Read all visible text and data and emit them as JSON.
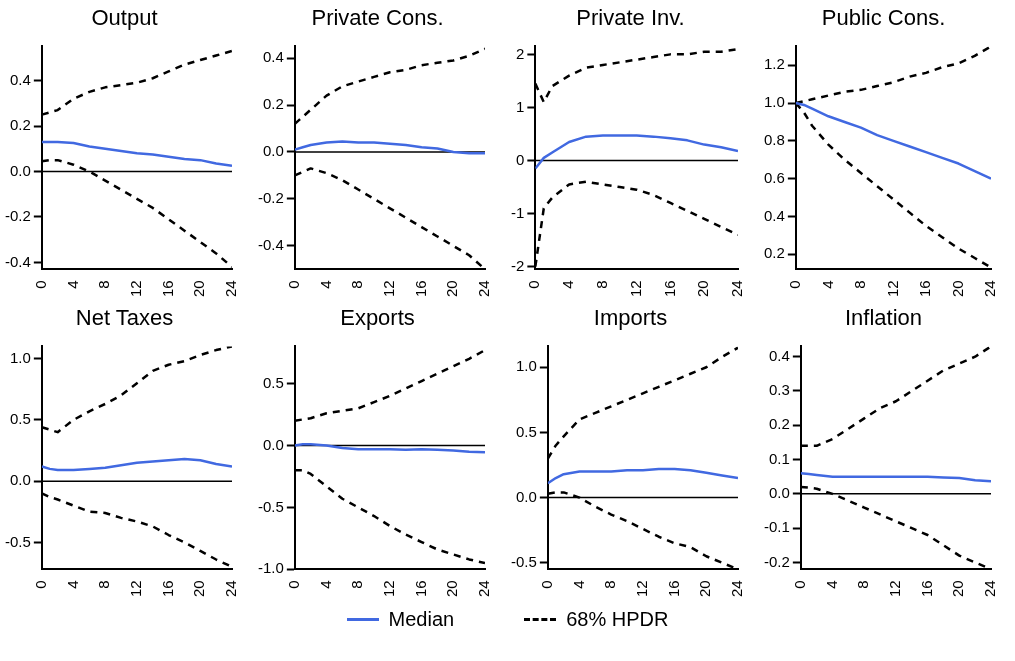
{
  "chart_data": [
    {
      "type": "line",
      "title": "Output",
      "x": [
        0,
        1,
        2,
        4,
        6,
        8,
        10,
        12,
        14,
        16,
        18,
        20,
        22,
        24
      ],
      "xlim": [
        0,
        24
      ],
      "xticks": [
        0,
        4,
        8,
        12,
        16,
        20,
        24
      ],
      "ylim": [
        -0.43,
        0.55
      ],
      "yticks": [
        0.4,
        0.2,
        {
          "value": 0,
          "label": "0.0"
        },
        -0.2,
        -0.4
      ],
      "grid": false,
      "marker": "none",
      "ref_lines": [
        {
          "axis": "y",
          "value": 0,
          "color": "#000000"
        }
      ],
      "series": [
        {
          "color": "#4169e1",
          "line_style": "solid",
          "values": [
            0.13,
            0.13,
            0.13,
            0.125,
            0.11,
            0.1,
            0.09,
            0.08,
            0.075,
            0.065,
            0.055,
            0.05,
            0.035,
            0.025
          ]
        },
        {
          "color": "#000000",
          "line_style": "dashed",
          "values": [
            0.25,
            0.26,
            0.27,
            0.32,
            0.35,
            0.37,
            0.38,
            0.39,
            0.41,
            0.44,
            0.47,
            0.49,
            0.51,
            0.53
          ]
        },
        {
          "color": "#000000",
          "line_style": "dashed",
          "values": [
            0.045,
            0.05,
            0.05,
            0.03,
            0.0,
            -0.04,
            -0.08,
            -0.12,
            -0.16,
            -0.21,
            -0.26,
            -0.31,
            -0.36,
            -0.42
          ]
        }
      ]
    },
    {
      "type": "line",
      "title": "Private Cons.",
      "x": [
        0,
        1,
        2,
        4,
        6,
        8,
        10,
        12,
        14,
        16,
        18,
        20,
        22,
        24
      ],
      "xlim": [
        0,
        24
      ],
      "xticks": [
        0,
        4,
        8,
        12,
        16,
        20,
        24
      ],
      "ylim": [
        -0.5,
        0.45
      ],
      "yticks": [
        0.4,
        0.2,
        {
          "value": 0,
          "label": "0.0"
        },
        -0.2,
        -0.4
      ],
      "grid": false,
      "marker": "none",
      "ref_lines": [
        {
          "axis": "y",
          "value": 0,
          "color": "#000000"
        }
      ],
      "series": [
        {
          "color": "#4169e1",
          "line_style": "solid",
          "values": [
            0.01,
            0.02,
            0.03,
            0.04,
            0.045,
            0.04,
            0.04,
            0.035,
            0.03,
            0.02,
            0.015,
            0.0,
            -0.005,
            -0.005
          ]
        },
        {
          "color": "#000000",
          "line_style": "dashed",
          "values": [
            0.12,
            0.15,
            0.18,
            0.24,
            0.28,
            0.3,
            0.32,
            0.34,
            0.35,
            0.37,
            0.38,
            0.39,
            0.41,
            0.44
          ]
        },
        {
          "color": "#000000",
          "line_style": "dashed",
          "values": [
            -0.1,
            -0.085,
            -0.07,
            -0.09,
            -0.12,
            -0.16,
            -0.2,
            -0.24,
            -0.28,
            -0.32,
            -0.36,
            -0.4,
            -0.44,
            -0.5
          ]
        }
      ]
    },
    {
      "type": "line",
      "title": "Private Inv.",
      "x": [
        0,
        1,
        2,
        4,
        6,
        8,
        10,
        12,
        14,
        16,
        18,
        20,
        22,
        24
      ],
      "xlim": [
        0,
        24
      ],
      "xticks": [
        0,
        4,
        8,
        12,
        16,
        20,
        24
      ],
      "ylim": [
        -2.05,
        2.15
      ],
      "yticks": [
        2,
        1,
        0,
        -1,
        -2
      ],
      "grid": false,
      "marker": "none",
      "ref_lines": [
        {
          "axis": "y",
          "value": 0,
          "color": "#000000"
        }
      ],
      "series": [
        {
          "color": "#4169e1",
          "line_style": "solid",
          "values": [
            -0.15,
            0.05,
            0.15,
            0.35,
            0.45,
            0.47,
            0.47,
            0.47,
            0.45,
            0.42,
            0.38,
            0.3,
            0.25,
            0.18
          ]
        },
        {
          "color": "#000000",
          "line_style": "dashed",
          "values": [
            1.45,
            1.1,
            1.4,
            1.6,
            1.75,
            1.8,
            1.85,
            1.9,
            1.95,
            2.0,
            2.0,
            2.05,
            2.05,
            2.1
          ]
        },
        {
          "color": "#000000",
          "line_style": "dashed",
          "values": [
            -2.0,
            -0.9,
            -0.7,
            -0.45,
            -0.4,
            -0.45,
            -0.5,
            -0.55,
            -0.65,
            -0.8,
            -0.95,
            -1.1,
            -1.25,
            -1.4
          ]
        }
      ]
    },
    {
      "type": "line",
      "title": "Public Cons.",
      "x": [
        0,
        1,
        2,
        4,
        6,
        8,
        10,
        12,
        14,
        16,
        18,
        20,
        22,
        24
      ],
      "xlim": [
        0,
        24
      ],
      "xticks": [
        0,
        4,
        8,
        12,
        16,
        20,
        24
      ],
      "ylim": [
        0.12,
        1.3
      ],
      "yticks": [
        1.2,
        {
          "value": 1,
          "label": "1.0"
        },
        0.8,
        0.6,
        0.4,
        0.2
      ],
      "grid": false,
      "marker": "none",
      "series": [
        {
          "color": "#4169e1",
          "line_style": "solid",
          "values": [
            1.0,
            0.99,
            0.97,
            0.93,
            0.9,
            0.87,
            0.83,
            0.8,
            0.77,
            0.74,
            0.71,
            0.68,
            0.64,
            0.6
          ]
        },
        {
          "color": "#000000",
          "line_style": "dashed",
          "values": [
            1.0,
            1.01,
            1.02,
            1.04,
            1.06,
            1.07,
            1.09,
            1.11,
            1.14,
            1.16,
            1.19,
            1.21,
            1.25,
            1.3
          ]
        },
        {
          "color": "#000000",
          "line_style": "dashed",
          "values": [
            1.0,
            0.95,
            0.88,
            0.78,
            0.7,
            0.63,
            0.56,
            0.49,
            0.42,
            0.35,
            0.29,
            0.23,
            0.18,
            0.13
          ]
        }
      ]
    },
    {
      "type": "line",
      "title": "Net Taxes",
      "x": [
        0,
        1,
        2,
        4,
        6,
        8,
        10,
        12,
        14,
        16,
        18,
        20,
        22,
        24
      ],
      "xlim": [
        0,
        24
      ],
      "xticks": [
        0,
        4,
        8,
        12,
        16,
        20,
        24
      ],
      "ylim": [
        -0.72,
        1.1
      ],
      "yticks": [
        {
          "value": 1,
          "label": "1.0"
        },
        0.5,
        {
          "value": 0,
          "label": "0.0"
        },
        -0.5
      ],
      "grid": false,
      "marker": "none",
      "ref_lines": [
        {
          "axis": "y",
          "value": 0,
          "color": "#000000"
        }
      ],
      "series": [
        {
          "color": "#4169e1",
          "line_style": "solid",
          "values": [
            0.12,
            0.1,
            0.09,
            0.09,
            0.1,
            0.11,
            0.13,
            0.15,
            0.16,
            0.17,
            0.18,
            0.17,
            0.14,
            0.12
          ]
        },
        {
          "color": "#000000",
          "line_style": "dashed",
          "values": [
            0.44,
            0.42,
            0.4,
            0.5,
            0.57,
            0.63,
            0.7,
            0.8,
            0.9,
            0.95,
            0.98,
            1.03,
            1.07,
            1.1
          ]
        },
        {
          "color": "#000000",
          "line_style": "dashed",
          "values": [
            -0.1,
            -0.13,
            -0.15,
            -0.2,
            -0.25,
            -0.26,
            -0.3,
            -0.33,
            -0.37,
            -0.44,
            -0.5,
            -0.57,
            -0.64,
            -0.7
          ]
        }
      ]
    },
    {
      "type": "line",
      "title": "Exports",
      "x": [
        0,
        1,
        2,
        4,
        6,
        8,
        10,
        12,
        14,
        16,
        18,
        20,
        22,
        24
      ],
      "xlim": [
        0,
        24
      ],
      "xticks": [
        0,
        4,
        8,
        12,
        16,
        20,
        24
      ],
      "ylim": [
        -1.0,
        0.8
      ],
      "yticks": [
        0.5,
        {
          "value": 0,
          "label": "0.0"
        },
        -0.5,
        {
          "value": -1,
          "label": "-1.0"
        }
      ],
      "grid": false,
      "marker": "none",
      "ref_lines": [
        {
          "axis": "y",
          "value": 0,
          "color": "#000000"
        }
      ],
      "series": [
        {
          "color": "#4169e1",
          "line_style": "solid",
          "values": [
            0.0,
            0.01,
            0.01,
            0.0,
            -0.02,
            -0.03,
            -0.03,
            -0.03,
            -0.035,
            -0.03,
            -0.035,
            -0.04,
            -0.05,
            -0.055
          ]
        },
        {
          "color": "#000000",
          "line_style": "dashed",
          "values": [
            0.2,
            0.21,
            0.22,
            0.26,
            0.28,
            0.3,
            0.35,
            0.4,
            0.46,
            0.52,
            0.58,
            0.64,
            0.7,
            0.77
          ]
        },
        {
          "color": "#000000",
          "line_style": "dashed",
          "values": [
            -0.2,
            -0.2,
            -0.23,
            -0.33,
            -0.43,
            -0.5,
            -0.57,
            -0.65,
            -0.72,
            -0.78,
            -0.84,
            -0.88,
            -0.92,
            -0.95
          ]
        }
      ]
    },
    {
      "type": "line",
      "title": "Imports",
      "x": [
        0,
        1,
        2,
        4,
        6,
        8,
        10,
        12,
        14,
        16,
        18,
        20,
        22,
        24
      ],
      "xlim": [
        0,
        24
      ],
      "xticks": [
        0,
        4,
        8,
        12,
        16,
        20,
        24
      ],
      "ylim": [
        -0.55,
        1.16
      ],
      "yticks": [
        {
          "value": 1,
          "label": "1.0"
        },
        0.5,
        {
          "value": 0,
          "label": "0.0"
        },
        -0.5
      ],
      "grid": false,
      "marker": "none",
      "ref_lines": [
        {
          "axis": "y",
          "value": 0,
          "color": "#000000"
        }
      ],
      "series": [
        {
          "color": "#4169e1",
          "line_style": "solid",
          "values": [
            0.11,
            0.15,
            0.18,
            0.2,
            0.2,
            0.2,
            0.21,
            0.21,
            0.22,
            0.22,
            0.21,
            0.19,
            0.17,
            0.15
          ]
        },
        {
          "color": "#000000",
          "line_style": "dashed",
          "values": [
            0.3,
            0.4,
            0.47,
            0.6,
            0.65,
            0.7,
            0.75,
            0.8,
            0.85,
            0.9,
            0.95,
            1.0,
            1.08,
            1.15
          ]
        },
        {
          "color": "#000000",
          "line_style": "dashed",
          "values": [
            0.03,
            0.04,
            0.04,
            0.0,
            -0.07,
            -0.13,
            -0.18,
            -0.24,
            -0.3,
            -0.35,
            -0.38,
            -0.45,
            -0.5,
            -0.55
          ]
        }
      ]
    },
    {
      "type": "line",
      "title": "Inflation",
      "x": [
        0,
        1,
        2,
        4,
        6,
        8,
        10,
        12,
        14,
        16,
        18,
        20,
        22,
        24
      ],
      "xlim": [
        0,
        24
      ],
      "xticks": [
        0,
        4,
        8,
        12,
        16,
        20,
        24
      ],
      "ylim": [
        -0.22,
        0.43
      ],
      "yticks": [
        0.4,
        0.3,
        0.2,
        0.1,
        {
          "value": 0,
          "label": "0.0"
        },
        -0.1,
        -0.2
      ],
      "grid": false,
      "marker": "none",
      "legend": "bottom",
      "ref_lines": [
        {
          "axis": "y",
          "value": 0,
          "color": "#000000"
        }
      ],
      "series": [
        {
          "name": "Median",
          "color": "#4169e1",
          "line_style": "solid",
          "values": [
            0.06,
            0.058,
            0.055,
            0.05,
            0.05,
            0.05,
            0.05,
            0.05,
            0.05,
            0.05,
            0.048,
            0.046,
            0.04,
            0.037
          ]
        },
        {
          "name": "68% HPDR",
          "color": "#000000",
          "line_style": "dashed",
          "values": [
            0.14,
            0.14,
            0.14,
            0.16,
            0.19,
            0.22,
            0.25,
            0.27,
            0.3,
            0.33,
            0.36,
            0.38,
            0.4,
            0.43
          ]
        },
        {
          "color": "#000000",
          "line_style": "dashed",
          "values": [
            0.02,
            0.018,
            0.015,
            0.0,
            -0.02,
            -0.04,
            -0.06,
            -0.08,
            -0.1,
            -0.12,
            -0.15,
            -0.18,
            -0.2,
            -0.22
          ]
        }
      ]
    }
  ]
}
